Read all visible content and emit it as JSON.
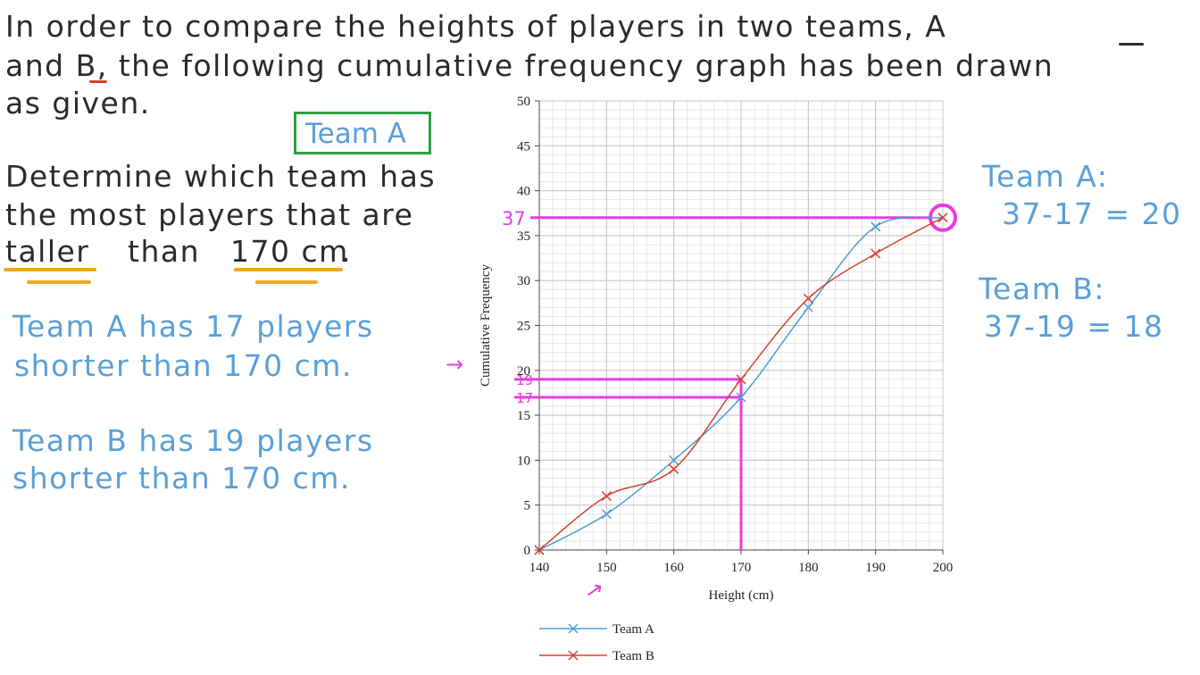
{
  "question": {
    "line1": "In order to compare the heights of players in two teams, A",
    "line2": "and B, the following cumulative frequency graph has been drawn",
    "line3": "as given.",
    "task1": "Determine which team has",
    "task2": "the most players that are",
    "task3a": "taller",
    "task3b": "than",
    "task3c": "170 cm",
    "task3d": "."
  },
  "annotations": {
    "team_box": "Team A",
    "teamA_shorter_1": "Team A has 17 players",
    "teamA_shorter_2": "shorter than 170 cm.",
    "teamB_shorter_1": "Team B has 19 players",
    "teamB_shorter_2": "shorter than 170 cm.",
    "teamA_label": "Team A:",
    "teamA_calc": "37-17 = 20",
    "teamB_label": "Team B:",
    "teamB_calc": "37-19 = 18",
    "mark_37": "37",
    "mark_19": "19",
    "mark_17": "17",
    "arrow": "→"
  },
  "colors": {
    "teamA": "#4a9fd4",
    "teamB": "#d9412b",
    "highlight": "#e83ce0",
    "box": "#2ea043",
    "underline": "#f2a623"
  },
  "chart_data": {
    "type": "line",
    "xlabel": "Height (cm)",
    "ylabel": "Cumulative Frequency",
    "xlim": [
      140,
      200
    ],
    "ylim": [
      0,
      50
    ],
    "xticks": [
      140,
      150,
      160,
      170,
      180,
      190,
      200
    ],
    "yticks": [
      0,
      5,
      10,
      15,
      20,
      25,
      30,
      35,
      40,
      45,
      50
    ],
    "grid": true,
    "legend_position": "bottom",
    "x": [
      140,
      150,
      160,
      170,
      180,
      190,
      200
    ],
    "series": [
      {
        "name": "Team A",
        "values": [
          0,
          4,
          10,
          17,
          27,
          36,
          37
        ]
      },
      {
        "name": "Team B",
        "values": [
          0,
          6,
          9,
          19,
          28,
          33,
          37
        ]
      }
    ],
    "guides": [
      {
        "x": 170,
        "y": 19
      },
      {
        "x": 170,
        "y": 17
      },
      {
        "x": 200,
        "y": 37
      }
    ]
  }
}
